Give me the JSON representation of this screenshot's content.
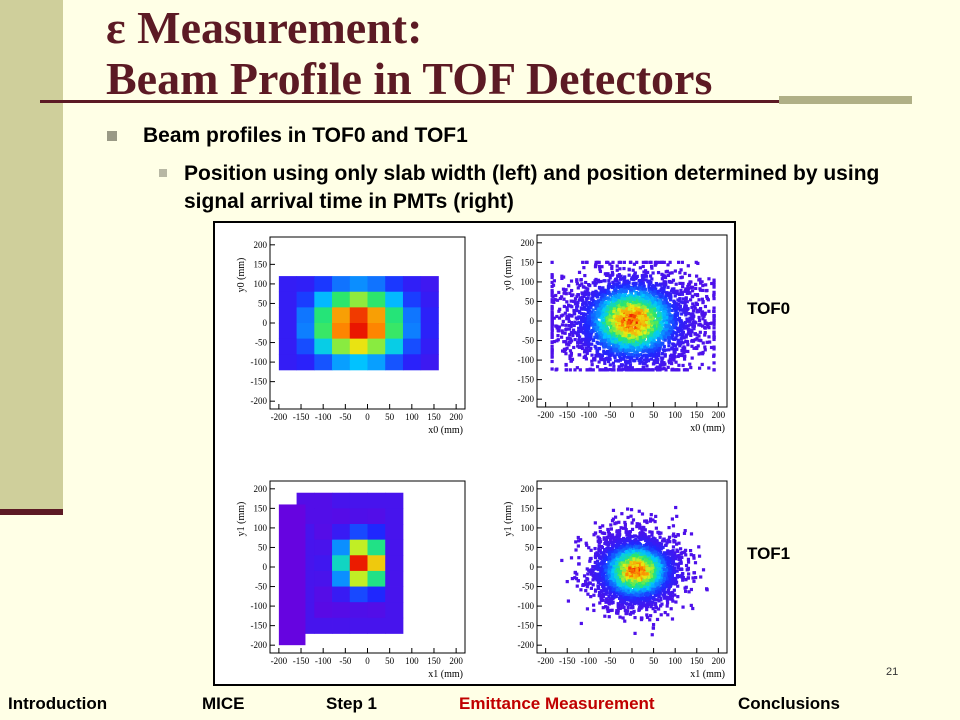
{
  "title": {
    "line1": "ε Measurement:",
    "line2": "Beam Profile in TOF Detectors"
  },
  "bullets": [
    {
      "text": "Beam profiles in TOF0 and TOF1"
    },
    {
      "text": "Position using only slab width (left) and position determined by using signal arrival time in PMTs (right)"
    }
  ],
  "figure": {
    "row_labels": [
      "TOF0",
      "TOF1"
    ],
    "panels": [
      {
        "ylabel": "y0 (mm)",
        "xlabel": "x0 (mm)",
        "ysub": "0",
        "xsub": "0"
      },
      {
        "ylabel": "y0 (mm)",
        "xlabel": "x0 (mm)",
        "ysub": "0",
        "xsub": "0"
      },
      {
        "ylabel": "y1 (mm)",
        "xlabel": "x1 (mm)",
        "ysub": "1",
        "xsub": "1"
      },
      {
        "ylabel": "y1 (mm)",
        "xlabel": "x1 (mm)",
        "ysub": "1",
        "xsub": "1"
      }
    ],
    "x_ticks": [
      -200,
      -150,
      -100,
      -50,
      0,
      50,
      100,
      150,
      200
    ],
    "y_ticks": [
      200,
      150,
      100,
      50,
      0,
      -50,
      -100,
      -150,
      -200
    ],
    "axis_range_mm": [
      -220,
      220
    ]
  },
  "page_number": "21",
  "footer_nav": [
    {
      "label": "Introduction",
      "active": false
    },
    {
      "label": "MICE",
      "active": false
    },
    {
      "label": "Step 1",
      "active": false
    },
    {
      "label": "Emittance Measurement",
      "active": true
    },
    {
      "label": "Conclusions",
      "active": false
    }
  ],
  "colors": {
    "title": "#5c1a24",
    "sidebar": "#cfcf9b",
    "background": "#ffffe6",
    "active_nav": "#c00000"
  }
}
